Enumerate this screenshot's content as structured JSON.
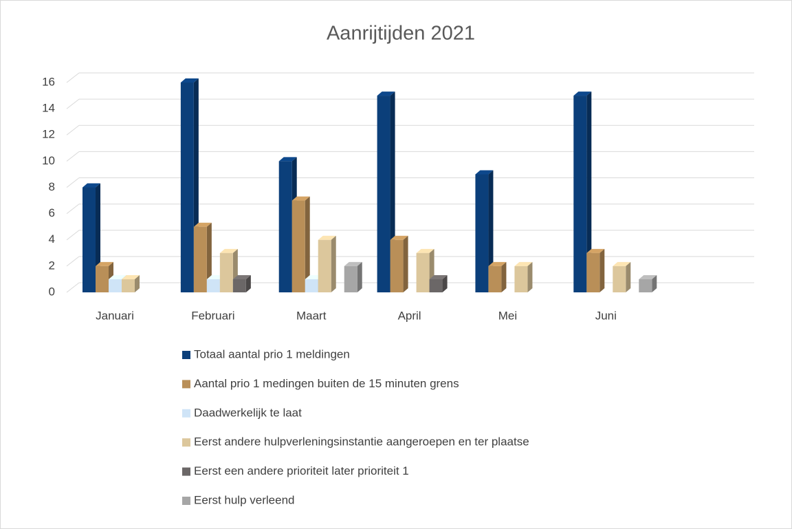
{
  "chart_data": {
    "type": "bar",
    "title": "Aanrijtijden 2021",
    "categories": [
      "Januari",
      "Februari",
      "Maart",
      "April",
      "Mei",
      "Juni",
      null
    ],
    "series": [
      {
        "name": "Totaal aantal prio 1 meldingen",
        "color": "#0b3f7a",
        "values": [
          8,
          16,
          10,
          15,
          9,
          15,
          null
        ]
      },
      {
        "name": "Aantal prio 1 medingen buiten de 15 minuten grens",
        "color": "#b98f58",
        "values": [
          2,
          5,
          7,
          4,
          2,
          3,
          null
        ]
      },
      {
        "name": "Daadwerkelijk te laat",
        "color": "#cfe4f7",
        "values": [
          1,
          1,
          1,
          null,
          null,
          null,
          null
        ]
      },
      {
        "name": "Eerst andere hulpverleningsinstantie aangeroepen en ter plaatse",
        "color": "#dcc79c",
        "values": [
          1,
          3,
          4,
          3,
          2,
          2,
          null
        ]
      },
      {
        "name": "Eerst een andere prioriteit later prioriteit 1",
        "color": "#6b6767",
        "values": [
          null,
          1,
          null,
          1,
          null,
          null,
          null
        ]
      },
      {
        "name": "Eerst hulp verleend",
        "color": "#a6a6a6",
        "values": [
          null,
          null,
          2,
          null,
          null,
          1,
          null
        ]
      }
    ],
    "ylim": [
      0,
      16
    ],
    "yticks": [
      0,
      2,
      4,
      6,
      8,
      10,
      12,
      14,
      16
    ],
    "grid": true,
    "legend": "bottom"
  }
}
